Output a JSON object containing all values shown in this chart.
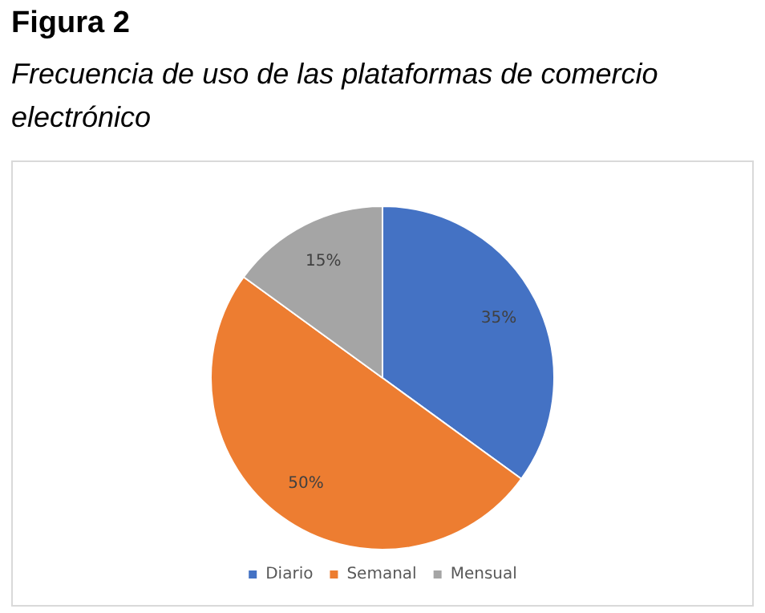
{
  "chart_data": {
    "type": "pie",
    "title": "Figura 2",
    "subtitle": "Frecuencia de uso de las plataformas de comercio electrónico",
    "categories": [
      "Diario",
      "Semanal",
      "Mensual"
    ],
    "values": [
      35,
      50,
      15
    ],
    "colors": [
      "#4472c4",
      "#ed7d31",
      "#a5a5a5"
    ],
    "value_labels": [
      "35%",
      "50%",
      "15%"
    ],
    "legend": "bottom"
  }
}
